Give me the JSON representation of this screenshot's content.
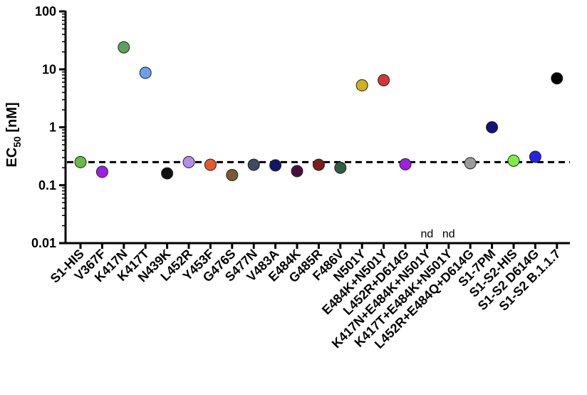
{
  "chart_data": {
    "type": "scatter",
    "title": "",
    "ylabel": {
      "main": "EC",
      "sub": "50",
      "unit": " [nM]"
    },
    "yscale": "log",
    "ylim": [
      0.01,
      100
    ],
    "yticks": [
      {
        "value": 0.01,
        "label": "0.01"
      },
      {
        "value": 0.1,
        "label": "0.1"
      },
      {
        "value": 1,
        "label": "1"
      },
      {
        "value": 10,
        "label": "10"
      },
      {
        "value": 100,
        "label": "100"
      }
    ],
    "grid": false,
    "legend": "none",
    "reference_line": {
      "value": 0.25,
      "style": "dashed"
    },
    "categories": [
      "S1-HIS",
      "V367F",
      "K417N",
      "K417T",
      "N439K",
      "L452R",
      "Y453F",
      "G476S",
      "S477N",
      "V483A",
      "E484K",
      "G485R",
      "F486V",
      "N501Y",
      "E484K+N501Y",
      "L452R+D614G",
      "K417N+E484K+N501Y",
      "K417T+E484K+N501Y",
      "L452R+E484Q+D614G",
      "S1-7PM",
      "S1-S2-HIS",
      "S1-S2 D614G",
      "S1-S2 B.1.1.7"
    ],
    "points": [
      {
        "category": "S1-HIS",
        "value": 0.25,
        "color": "#66bb44"
      },
      {
        "category": "V367F",
        "value": 0.17,
        "color": "#9b1fe8"
      },
      {
        "category": "K417N",
        "value": 24,
        "color": "#5aa25a"
      },
      {
        "category": "K417T",
        "value": 8.7,
        "color": "#6a9ef0"
      },
      {
        "category": "N439K",
        "value": 0.16,
        "color": "#111111"
      },
      {
        "category": "L452R",
        "value": 0.25,
        "color": "#b48ee8"
      },
      {
        "category": "Y453F",
        "value": 0.225,
        "color": "#e45a2a"
      },
      {
        "category": "G476S",
        "value": 0.15,
        "color": "#7a5a34"
      },
      {
        "category": "S477N",
        "value": 0.225,
        "color": "#3e4a5e"
      },
      {
        "category": "V483A",
        "value": 0.22,
        "color": "#14146e"
      },
      {
        "category": "E484K",
        "value": 0.175,
        "color": "#4a0e3e"
      },
      {
        "category": "G485R",
        "value": 0.225,
        "color": "#7e1c18"
      },
      {
        "category": "F486V",
        "value": 0.2,
        "color": "#2f5e3f"
      },
      {
        "category": "N501Y",
        "value": 5.3,
        "color": "#cdb21e"
      },
      {
        "category": "E484K+N501Y",
        "value": 6.5,
        "color": "#d63636"
      },
      {
        "category": "L452R+D614G",
        "value": 0.23,
        "color": "#a01ee6"
      },
      {
        "category": "K417N+E484K+N501Y",
        "value": null,
        "note": "nd"
      },
      {
        "category": "K417T+E484K+N501Y",
        "value": null,
        "note": "nd"
      },
      {
        "category": "L452R+E484Q+D614G",
        "value": 0.24,
        "color": "#9a9a9a"
      },
      {
        "category": "S1-7PM",
        "value": 1.0,
        "color": "#12127e"
      },
      {
        "category": "S1-S2-HIS",
        "value": 0.265,
        "color": "#7cf03e"
      },
      {
        "category": "S1-S2 D614G",
        "value": 0.31,
        "color": "#2424e8"
      },
      {
        "category": "S1-S2 B.1.1.7",
        "value": 7.0,
        "color": "#000000"
      }
    ]
  }
}
